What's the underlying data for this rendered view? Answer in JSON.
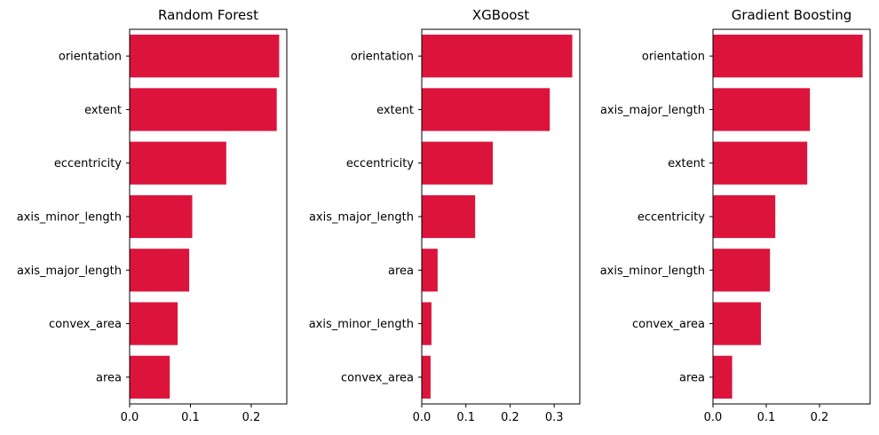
{
  "chart_data": [
    {
      "type": "bar",
      "orientation": "horizontal",
      "title": "Random Forest",
      "xlabel": "",
      "ylabel": "",
      "categories": [
        "orientation",
        "extent",
        "eccentricity",
        "axis_minor_length",
        "axis_major_length",
        "convex_area",
        "area"
      ],
      "values": [
        0.246,
        0.242,
        0.159,
        0.103,
        0.098,
        0.079,
        0.066
      ],
      "xlim": [
        0,
        0.2585
      ],
      "xticks": [
        "0.0",
        "0.1",
        "0.2"
      ],
      "xtick_values": [
        0,
        0.1,
        0.2
      ],
      "grid": false,
      "color": "#dc143c"
    },
    {
      "type": "bar",
      "orientation": "horizontal",
      "title": "XGBoost",
      "xlabel": "",
      "ylabel": "",
      "categories": [
        "orientation",
        "extent",
        "eccentricity",
        "axis_major_length",
        "area",
        "axis_minor_length",
        "convex_area"
      ],
      "values": [
        0.341,
        0.29,
        0.161,
        0.121,
        0.036,
        0.022,
        0.02
      ],
      "xlim": [
        0,
        0.358
      ],
      "xticks": [
        "0.0",
        "0.1",
        "0.2",
        "0.3"
      ],
      "xtick_values": [
        0,
        0.1,
        0.2,
        0.3
      ],
      "grid": false,
      "color": "#dc143c"
    },
    {
      "type": "bar",
      "orientation": "horizontal",
      "title": "Gradient Boosting",
      "xlabel": "",
      "ylabel": "",
      "categories": [
        "orientation",
        "axis_major_length",
        "extent",
        "eccentricity",
        "axis_minor_length",
        "convex_area",
        "area"
      ],
      "values": [
        0.281,
        0.182,
        0.177,
        0.117,
        0.107,
        0.09,
        0.036
      ],
      "xlim": [
        0,
        0.295
      ],
      "xticks": [
        "0.0",
        "0.1",
        "0.2"
      ],
      "xtick_values": [
        0,
        0.1,
        0.2
      ],
      "grid": false,
      "color": "#dc143c"
    }
  ]
}
